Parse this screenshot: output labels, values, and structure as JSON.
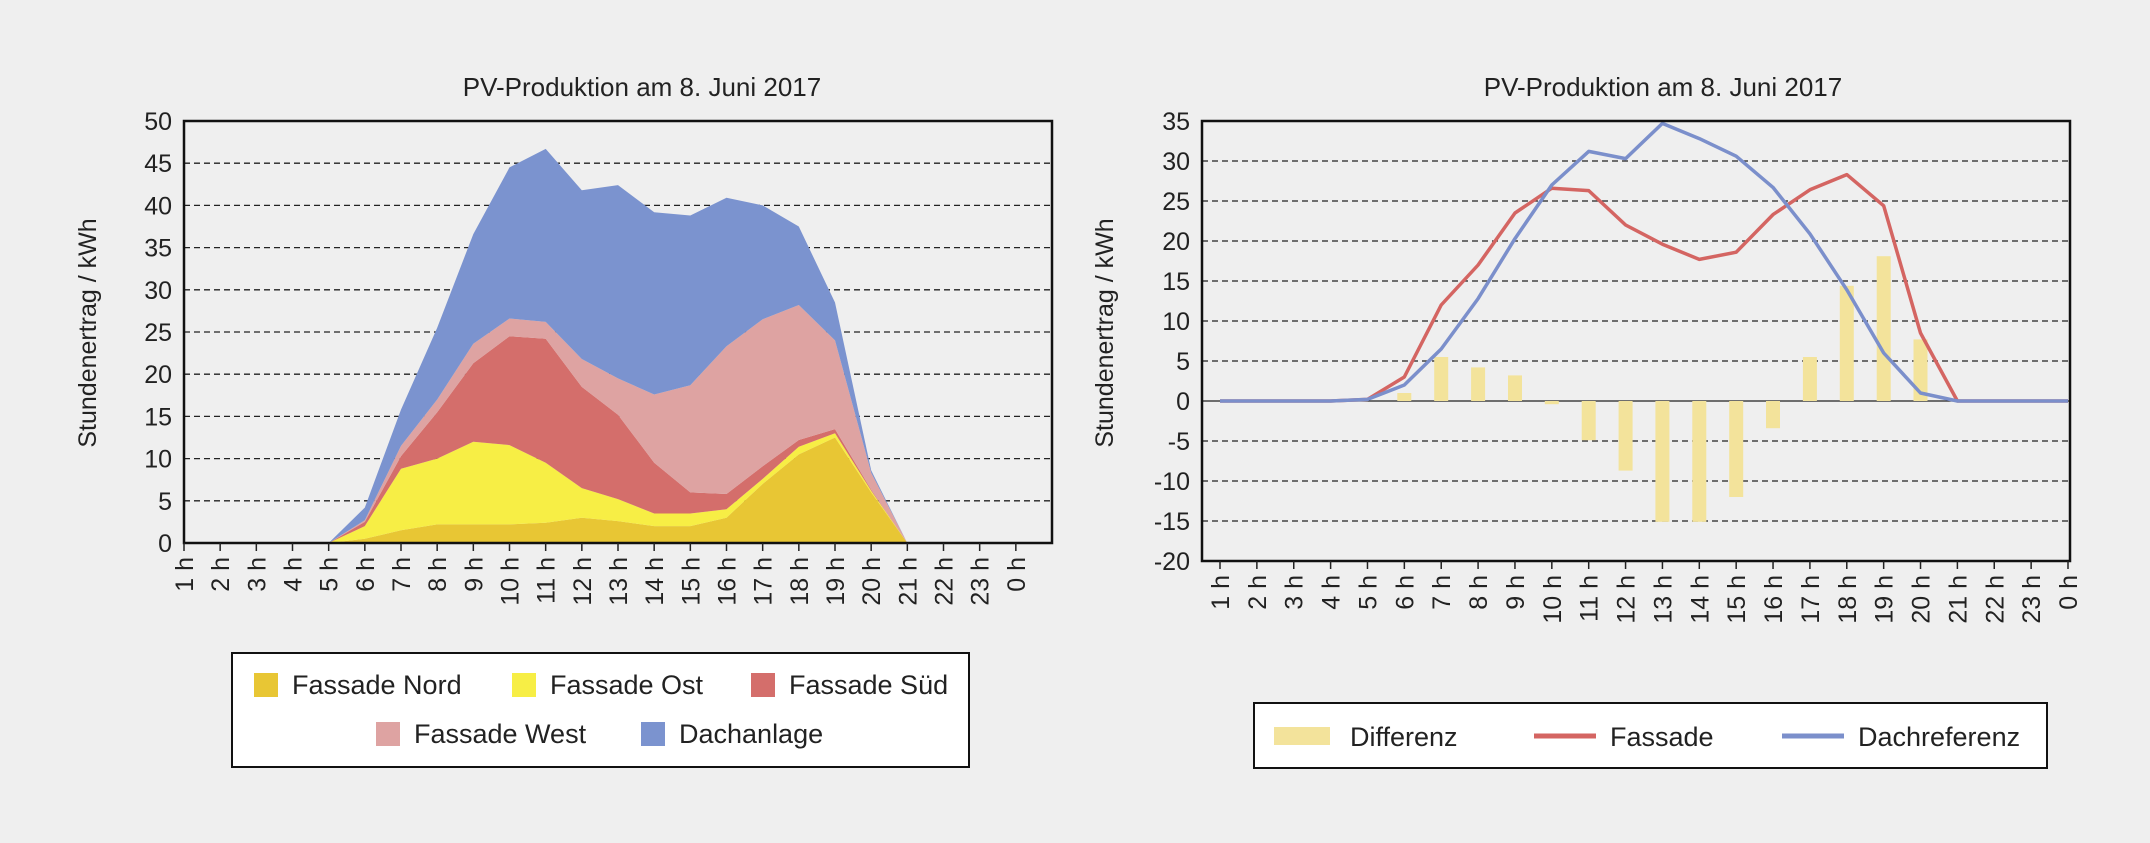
{
  "chart_data": [
    {
      "type": "area",
      "stacked": true,
      "title": "PV-Produktion am 8. Juni 2017",
      "xlabel": "",
      "ylabel": "Stundenertrag / kWh",
      "ylim": [
        0,
        50
      ],
      "yticks": [
        0,
        5,
        10,
        15,
        20,
        25,
        30,
        35,
        40,
        45,
        50
      ],
      "grid": "horizontal dashed",
      "legend": "bottom",
      "categories": [
        "1 h",
        "2 h",
        "3 h",
        "4 h",
        "5 h",
        "6 h",
        "7 h",
        "8 h",
        "9 h",
        "10 h",
        "11 h",
        "12 h",
        "13 h",
        "14 h",
        "15 h",
        "16 h",
        "17 h",
        "18 h",
        "19 h",
        "20 h",
        "21 h",
        "22 h",
        "23 h",
        "0 h"
      ],
      "series": [
        {
          "name": "Fassade Nord",
          "color": "#e8c634",
          "values": [
            0,
            0,
            0,
            0,
            0,
            0.5,
            1.5,
            2.2,
            2.2,
            2.2,
            2.4,
            3.0,
            2.6,
            2.0,
            2.0,
            3.0,
            7.0,
            10.5,
            12.5,
            6.0,
            0,
            0,
            0,
            0
          ]
        },
        {
          "name": "Fassade Ost",
          "color": "#f7ee45",
          "values": [
            0,
            0,
            0,
            0,
            0,
            1.5,
            7.3,
            7.8,
            9.8,
            9.4,
            7.1,
            3.5,
            2.6,
            1.5,
            1.5,
            1.0,
            0.6,
            0.9,
            0.5,
            0.2,
            0,
            0,
            0,
            0
          ]
        },
        {
          "name": "Fassade Süd",
          "color": "#d46e6b",
          "values": [
            0,
            0,
            0,
            0,
            0,
            0.5,
            1.5,
            5.5,
            9.3,
            12.9,
            14.7,
            12.0,
            10.0,
            6.0,
            2.5,
            1.8,
            1.5,
            0.8,
            0.5,
            0.1,
            0,
            0,
            0,
            0
          ]
        },
        {
          "name": "Fassade West",
          "color": "#dea3a2",
          "values": [
            0,
            0,
            0,
            0,
            0,
            0.2,
            1.2,
            1.5,
            2.3,
            2.1,
            2.0,
            3.3,
            4.3,
            8.1,
            12.7,
            17.5,
            17.4,
            16.0,
            10.5,
            2.0,
            0,
            0,
            0,
            0
          ]
        },
        {
          "name": "Dachanlage",
          "color": "#7b93cf",
          "values": [
            0,
            0,
            0,
            0,
            0,
            1.5,
            4.3,
            8.5,
            13.0,
            17.9,
            20.5,
            20.0,
            22.9,
            21.6,
            20.1,
            17.6,
            13.5,
            9.3,
            4.5,
            0.3,
            0,
            0,
            0,
            0
          ]
        }
      ]
    },
    {
      "type": "bar+line",
      "title": "PV-Produktion am 8. Juni 2017",
      "xlabel": "",
      "ylabel": "Stundenertrag / kWh",
      "ylim": [
        -20,
        35
      ],
      "yticks": [
        -20,
        -15,
        -10,
        -5,
        0,
        5,
        10,
        15,
        20,
        25,
        30,
        35
      ],
      "grid": "horizontal dashed",
      "legend": "bottom",
      "categories": [
        "1 h",
        "2 h",
        "3 h",
        "4 h",
        "5 h",
        "6 h",
        "7 h",
        "8 h",
        "9 h",
        "10 h",
        "11 h",
        "12 h",
        "13 h",
        "14 h",
        "15 h",
        "16 h",
        "17 h",
        "18 h",
        "19 h",
        "20 h",
        "21 h",
        "22 h",
        "23 h",
        "0 h"
      ],
      "series": [
        {
          "name": "Differenz",
          "type": "bar",
          "color": "#f3e39b",
          "values": [
            0,
            0,
            0,
            0,
            0,
            1.0,
            5.5,
            4.2,
            3.2,
            -0.4,
            -4.9,
            -8.7,
            -15.1,
            -15.1,
            -12.0,
            -3.4,
            5.5,
            14.4,
            18.1,
            7.7,
            0,
            0,
            0,
            0
          ]
        },
        {
          "name": "Fassade",
          "type": "line",
          "color": "#d46562",
          "values": [
            0,
            0,
            0,
            0,
            0.2,
            3.0,
            12.0,
            17.0,
            23.5,
            26.6,
            26.3,
            22.0,
            19.6,
            17.7,
            18.6,
            23.3,
            26.4,
            28.3,
            24.4,
            8.5,
            0,
            0,
            0,
            0
          ]
        },
        {
          "name": "Dachreferenz",
          "type": "line",
          "color": "#7b8fcb",
          "values": [
            0,
            0,
            0,
            0,
            0.2,
            2.0,
            6.5,
            12.8,
            20.3,
            27.0,
            31.2,
            30.3,
            34.7,
            32.8,
            30.6,
            26.7,
            20.9,
            13.9,
            6.0,
            1.0,
            0,
            0,
            0,
            0
          ]
        }
      ]
    }
  ]
}
